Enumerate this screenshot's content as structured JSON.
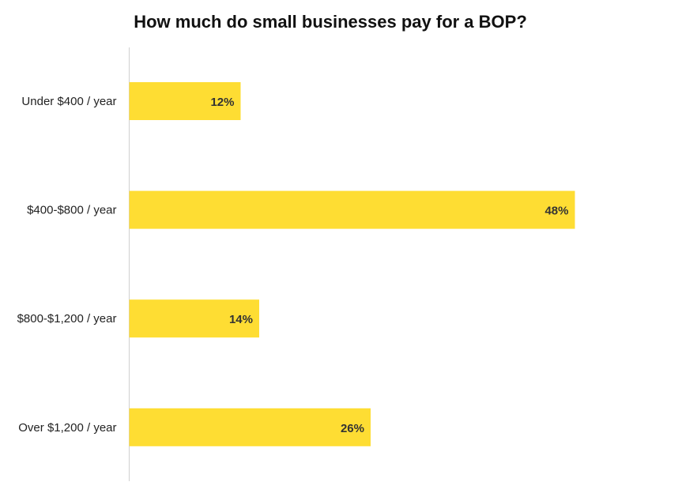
{
  "chart_data": {
    "type": "bar",
    "orientation": "horizontal",
    "title": "How much do small businesses pay for a BOP?",
    "categories": [
      "Under $400 / year",
      "$400-$800 / year",
      "$800-$1,200 / year",
      "Over $1,200 / year"
    ],
    "values": [
      12,
      48,
      14,
      26
    ],
    "data_labels": [
      "12%",
      "48%",
      "14%",
      "26%"
    ],
    "xlabel": "",
    "ylabel": "",
    "xlim": [
      0,
      60
    ],
    "grid": false,
    "bar_color": "#FEDD33",
    "label_color": "#333333"
  }
}
